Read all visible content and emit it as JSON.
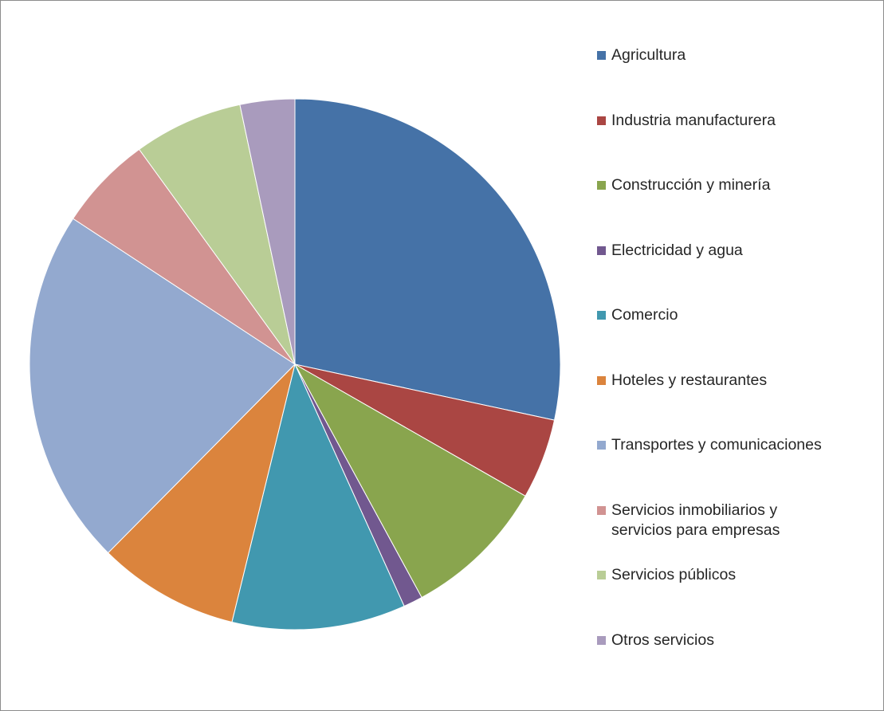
{
  "chart_data": {
    "type": "pie",
    "title": "",
    "categories": [
      "Agricultura",
      "Industria manufacturera",
      "Construcción y minería",
      "Electricidad y agua",
      "Comercio",
      "Hoteles y restaurantes",
      "Transportes y comunicaciones",
      "Servicios inmobiliarios y servicios para empresas",
      "Servicios públicos",
      "Otros servicios"
    ],
    "values": [
      29.0,
      5.0,
      9.0,
      1.2,
      10.8,
      8.8,
      22.3,
      5.9,
      6.8,
      3.4
    ],
    "colors": [
      "#4572a7",
      "#aa4643",
      "#89a54e",
      "#71588f",
      "#4198af",
      "#db843d",
      "#93a9cf",
      "#d19392",
      "#b9cd96",
      "#a99bbd"
    ],
    "legend_position": "right"
  }
}
